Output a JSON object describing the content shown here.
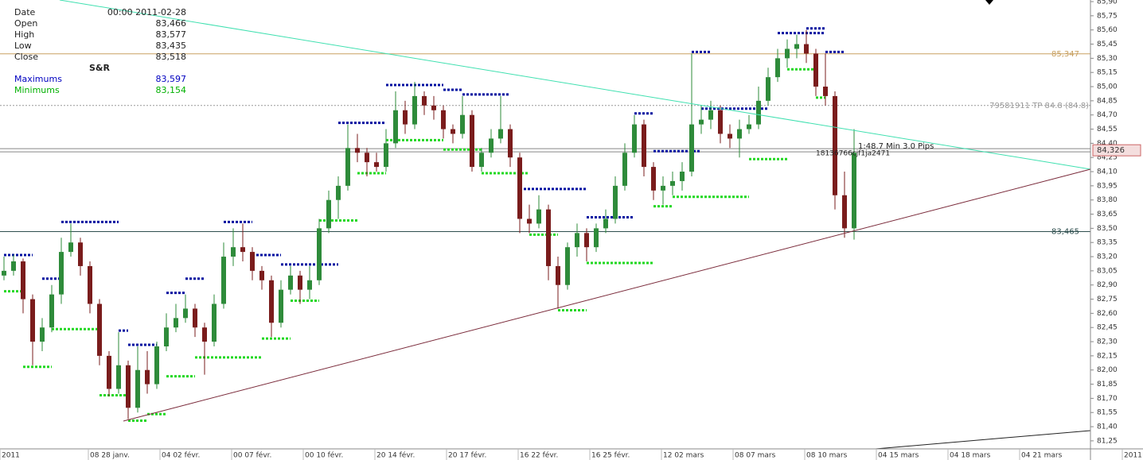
{
  "info_panel": {
    "rows": [
      {
        "label": "Date",
        "value": "00:00 2011-02-28"
      },
      {
        "label": "Open",
        "value": "83,466"
      },
      {
        "label": "High",
        "value": "83,577"
      },
      {
        "label": "Low",
        "value": "83,435"
      },
      {
        "label": "Close",
        "value": "83,518"
      }
    ],
    "sr_title": "S&R",
    "sr_rows": [
      {
        "label": "Maximums",
        "value": "83,597",
        "color": "#0000c0"
      },
      {
        "label": "Minimums",
        "value": "83,154",
        "color": "#00b000"
      }
    ]
  },
  "chart_data": {
    "type": "candlestick",
    "up_color": "#2e8b3a",
    "down_color": "#7a1c1c",
    "resistance_color": "#0010a0",
    "support_color": "#22d822",
    "ylim": [
      81.165,
      85.917
    ],
    "yticks": [
      {
        "value": 85.9,
        "label": "85,90"
      },
      {
        "value": 85.75,
        "label": "85,75"
      },
      {
        "value": 85.6,
        "label": "85,60"
      },
      {
        "value": 85.45,
        "label": "85,45"
      },
      {
        "value": 85.3,
        "label": "85,30"
      },
      {
        "value": 85.15,
        "label": "85,15"
      },
      {
        "value": 85.0,
        "label": "85,00"
      },
      {
        "value": 84.85,
        "label": "84,85"
      },
      {
        "value": 84.7,
        "label": "84,70"
      },
      {
        "value": 84.55,
        "label": "84,55"
      },
      {
        "value": 84.4,
        "label": "84,40"
      },
      {
        "value": 84.25,
        "label": "84,25"
      },
      {
        "value": 84.1,
        "label": "84,10"
      },
      {
        "value": 83.95,
        "label": "83,95"
      },
      {
        "value": 83.8,
        "label": "83,80"
      },
      {
        "value": 83.65,
        "label": "83,65"
      },
      {
        "value": 83.5,
        "label": "83,50"
      },
      {
        "value": 83.35,
        "label": "83,35"
      },
      {
        "value": 83.2,
        "label": "83,20"
      },
      {
        "value": 83.05,
        "label": "83,05"
      },
      {
        "value": 82.9,
        "label": "82,90"
      },
      {
        "value": 82.75,
        "label": "82,75"
      },
      {
        "value": 82.6,
        "label": "82,60"
      },
      {
        "value": 82.45,
        "label": "82,45"
      },
      {
        "value": 82.3,
        "label": "82,30"
      },
      {
        "value": 82.15,
        "label": "82,15"
      },
      {
        "value": 82.0,
        "label": "82,00"
      },
      {
        "value": 81.85,
        "label": "81,85"
      },
      {
        "value": 81.7,
        "label": "81,70"
      },
      {
        "value": 81.55,
        "label": "81,55"
      },
      {
        "value": 81.4,
        "label": "81,40"
      },
      {
        "value": 81.25,
        "label": "81,25"
      }
    ],
    "x_labels": [
      "2011",
      "08 28 janv.",
      "04 02 févr.",
      "00 07 févr.",
      "00 10 févr.",
      "20 14 févr.",
      "20 17 févr.",
      "16 22 févr.",
      "16 25 févr.",
      "12 02 mars",
      "08 07 mars",
      "08 10 mars",
      "04 15 mars",
      "04 18 mars",
      "04 21 mars",
      "2011"
    ],
    "candles": [
      [
        83.0,
        83.2,
        82.95,
        83.05
      ],
      [
        83.05,
        83.22,
        83.0,
        83.15
      ],
      [
        83.15,
        83.18,
        82.6,
        82.75
      ],
      [
        82.75,
        82.8,
        82.05,
        82.3
      ],
      [
        82.3,
        82.55,
        82.2,
        82.45
      ],
      [
        82.45,
        82.9,
        82.4,
        82.8
      ],
      [
        82.8,
        83.4,
        82.7,
        83.25
      ],
      [
        83.25,
        83.55,
        83.2,
        83.35
      ],
      [
        83.35,
        83.4,
        83.0,
        83.1
      ],
      [
        83.1,
        83.15,
        82.6,
        82.7
      ],
      [
        82.7,
        82.75,
        82.05,
        82.15
      ],
      [
        82.15,
        82.2,
        81.72,
        81.8
      ],
      [
        81.8,
        82.4,
        81.75,
        82.05
      ],
      [
        82.05,
        82.1,
        81.48,
        81.6
      ],
      [
        81.6,
        82.25,
        81.55,
        82.0
      ],
      [
        82.0,
        82.2,
        81.75,
        81.85
      ],
      [
        81.85,
        82.3,
        81.8,
        82.25
      ],
      [
        82.25,
        82.6,
        82.2,
        82.45
      ],
      [
        82.45,
        82.7,
        82.4,
        82.55
      ],
      [
        82.55,
        82.8,
        82.5,
        82.65
      ],
      [
        82.65,
        82.7,
        82.35,
        82.45
      ],
      [
        82.45,
        82.5,
        81.95,
        82.3
      ],
      [
        82.3,
        82.8,
        82.25,
        82.7
      ],
      [
        82.7,
        83.35,
        82.65,
        83.2
      ],
      [
        83.2,
        83.5,
        83.1,
        83.3
      ],
      [
        83.3,
        83.55,
        83.15,
        83.25
      ],
      [
        83.25,
        83.3,
        82.95,
        83.05
      ],
      [
        83.05,
        83.1,
        82.85,
        82.95
      ],
      [
        82.95,
        83.0,
        82.35,
        82.5
      ],
      [
        82.5,
        82.95,
        82.45,
        82.85
      ],
      [
        82.85,
        83.1,
        82.8,
        83.0
      ],
      [
        83.0,
        83.05,
        82.7,
        82.85
      ],
      [
        82.85,
        83.1,
        82.75,
        82.95
      ],
      [
        82.95,
        83.6,
        82.9,
        83.5
      ],
      [
        83.5,
        83.9,
        83.45,
        83.8
      ],
      [
        83.8,
        84.05,
        83.6,
        83.95
      ],
      [
        83.95,
        84.6,
        83.9,
        84.35
      ],
      [
        84.35,
        84.5,
        84.2,
        84.3
      ],
      [
        84.3,
        84.35,
        84.05,
        84.2
      ],
      [
        84.2,
        84.3,
        84.1,
        84.15
      ],
      [
        84.15,
        84.55,
        84.1,
        84.4
      ],
      [
        84.4,
        84.95,
        84.35,
        84.75
      ],
      [
        84.75,
        84.85,
        84.5,
        84.6
      ],
      [
        84.6,
        85.05,
        84.55,
        84.9
      ],
      [
        84.9,
        84.95,
        84.7,
        84.8
      ],
      [
        84.8,
        84.9,
        84.65,
        84.75
      ],
      [
        84.75,
        84.8,
        84.45,
        84.55
      ],
      [
        84.55,
        84.6,
        84.4,
        84.5
      ],
      [
        84.5,
        84.9,
        84.45,
        84.7
      ],
      [
        84.7,
        84.75,
        84.1,
        84.15
      ],
      [
        84.15,
        84.35,
        84.1,
        84.3
      ],
      [
        84.3,
        84.55,
        84.25,
        84.45
      ],
      [
        84.45,
        84.9,
        84.4,
        84.55
      ],
      [
        84.55,
        84.6,
        84.15,
        84.25
      ],
      [
        84.25,
        84.3,
        83.45,
        83.6
      ],
      [
        83.6,
        83.75,
        83.45,
        83.55
      ],
      [
        83.55,
        83.85,
        83.5,
        83.7
      ],
      [
        83.7,
        83.75,
        82.95,
        83.1
      ],
      [
        83.1,
        83.2,
        82.65,
        82.9
      ],
      [
        82.9,
        83.35,
        82.85,
        83.3
      ],
      [
        83.3,
        83.55,
        83.2,
        83.45
      ],
      [
        83.45,
        83.5,
        83.15,
        83.3
      ],
      [
        83.3,
        83.55,
        83.25,
        83.5
      ],
      [
        83.5,
        83.7,
        83.45,
        83.6
      ],
      [
        83.6,
        84.05,
        83.55,
        83.95
      ],
      [
        83.95,
        84.4,
        83.9,
        84.3
      ],
      [
        84.3,
        84.7,
        84.25,
        84.6
      ],
      [
        84.6,
        84.65,
        84.05,
        84.15
      ],
      [
        84.15,
        84.2,
        83.8,
        83.9
      ],
      [
        83.9,
        84.05,
        83.75,
        83.95
      ],
      [
        83.95,
        84.1,
        83.85,
        84.0
      ],
      [
        84.0,
        84.2,
        83.9,
        84.1
      ],
      [
        84.1,
        85.35,
        84.05,
        84.6
      ],
      [
        84.6,
        84.8,
        84.5,
        84.65
      ],
      [
        84.65,
        84.85,
        84.55,
        84.75
      ],
      [
        84.75,
        84.8,
        84.4,
        84.5
      ],
      [
        84.5,
        84.6,
        84.35,
        84.45
      ],
      [
        84.45,
        84.65,
        84.25,
        84.55
      ],
      [
        84.55,
        84.7,
        84.5,
        84.6
      ],
      [
        84.6,
        85.0,
        84.55,
        84.85
      ],
      [
        84.85,
        85.2,
        84.8,
        85.1
      ],
      [
        85.1,
        85.4,
        85.05,
        85.3
      ],
      [
        85.3,
        85.5,
        85.2,
        85.4
      ],
      [
        85.4,
        85.55,
        85.3,
        85.45
      ],
      [
        85.45,
        85.6,
        85.25,
        85.35
      ],
      [
        85.35,
        85.4,
        84.9,
        85.0
      ],
      [
        85.0,
        85.35,
        84.8,
        84.9
      ],
      [
        84.9,
        84.95,
        83.7,
        83.85
      ],
      [
        83.85,
        84.1,
        83.4,
        83.5
      ],
      [
        83.5,
        84.55,
        83.38,
        84.3
      ]
    ],
    "resistance": [
      [
        0,
        3,
        83.2
      ],
      [
        4,
        6,
        82.95
      ],
      [
        6,
        12,
        83.55
      ],
      [
        12,
        13,
        82.4
      ],
      [
        13,
        16,
        82.25
      ],
      [
        17,
        19,
        82.8
      ],
      [
        19,
        21,
        82.95
      ],
      [
        23,
        26,
        83.55
      ],
      [
        26,
        29,
        83.2
      ],
      [
        29,
        35,
        83.1
      ],
      [
        35,
        40,
        84.6
      ],
      [
        40,
        46,
        85.0
      ],
      [
        46,
        48,
        84.95
      ],
      [
        48,
        53,
        84.9
      ],
      [
        54,
        61,
        83.9
      ],
      [
        61,
        66,
        83.6
      ],
      [
        66,
        68,
        84.7
      ],
      [
        68,
        73,
        84.3
      ],
      [
        73,
        80,
        84.75
      ],
      [
        72,
        74,
        85.35
      ],
      [
        81,
        86,
        85.55
      ],
      [
        84,
        86,
        85.6
      ],
      [
        86,
        88,
        85.35
      ]
    ],
    "support": [
      [
        0,
        2,
        82.85
      ],
      [
        2,
        5,
        82.05
      ],
      [
        5,
        10,
        82.45
      ],
      [
        10,
        13,
        81.75
      ],
      [
        13,
        15,
        81.48
      ],
      [
        15,
        17,
        81.55
      ],
      [
        17,
        20,
        81.95
      ],
      [
        20,
        27,
        82.15
      ],
      [
        27,
        30,
        82.35
      ],
      [
        30,
        33,
        82.75
      ],
      [
        33,
        37,
        83.6
      ],
      [
        37,
        40,
        84.1
      ],
      [
        40,
        46,
        84.45
      ],
      [
        46,
        50,
        84.35
      ],
      [
        50,
        55,
        84.1
      ],
      [
        55,
        58,
        83.45
      ],
      [
        58,
        61,
        82.65
      ],
      [
        61,
        68,
        83.15
      ],
      [
        68,
        70,
        83.75
      ],
      [
        70,
        78,
        83.85
      ],
      [
        78,
        82,
        84.25
      ],
      [
        82,
        85,
        85.2
      ],
      [
        85,
        86,
        84.9
      ]
    ],
    "levels": [
      {
        "value": 85.347,
        "label": "85,347",
        "color": "#c8a060",
        "style": "solid"
      },
      {
        "value": 84.8,
        "label": "79581911 TP 84.8 (84.8)",
        "color": "#999999",
        "style": "dotted"
      },
      {
        "value": 84.326,
        "label": "84,326",
        "color": "#888888",
        "style": "box"
      },
      {
        "value": 83.465,
        "label": "83,465",
        "color": "#2f4f4f",
        "style": "solid"
      }
    ],
    "annotations": [
      "1:48.7 Min 3.0 Pips",
      "18136766cjf1ja2471"
    ]
  }
}
